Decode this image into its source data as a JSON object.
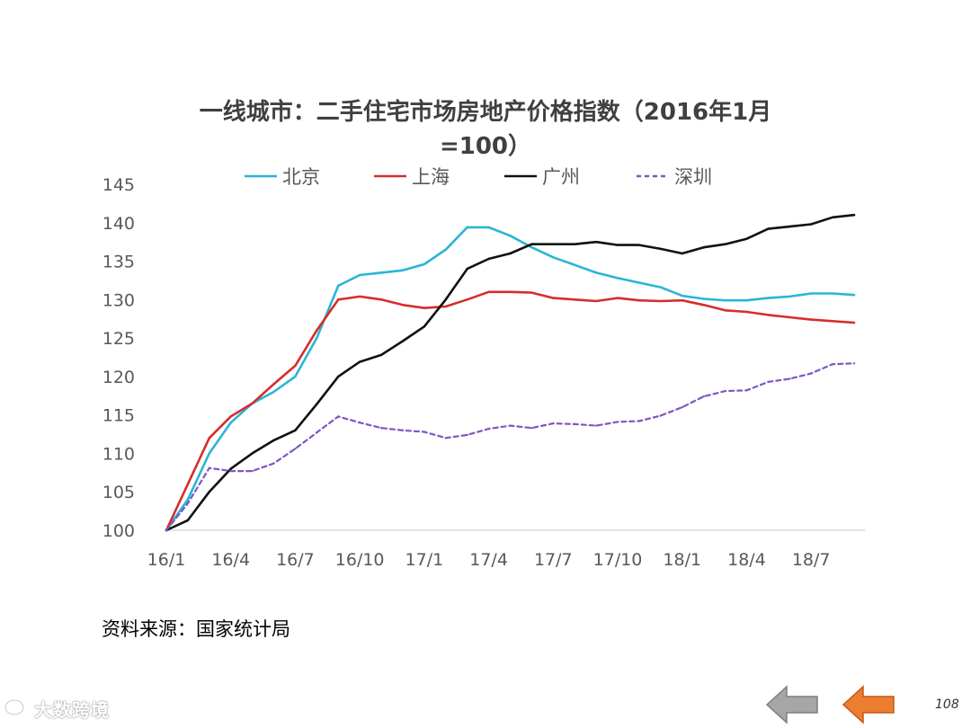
{
  "page": {
    "source_text": "资料来源：国家统计局",
    "page_number": "108",
    "watermark": "大数跨境"
  },
  "colors": {
    "beijing": "#29B5D6",
    "shanghai": "#D62D2D",
    "guangzhou": "#111111",
    "shenzhen": "#7E57C2",
    "prev_button": "#A6A6A6",
    "next_button": "#ED7D31"
  },
  "icons": {
    "prev": "left-arrow-icon",
    "next": "left-arrow-icon",
    "watermark": "chat-logo-icon"
  },
  "chart_data": {
    "type": "line",
    "title_lines": [
      "一线城市：二手住宅市场房地产价格指数（2016年1月",
      "=100）"
    ],
    "xlabel": "",
    "ylabel": "",
    "ylim": [
      100,
      145
    ],
    "yticks": [
      100,
      105,
      110,
      115,
      120,
      125,
      130,
      135,
      140,
      145
    ],
    "x": [
      "16/1",
      "16/2",
      "16/3",
      "16/4",
      "16/5",
      "16/6",
      "16/7",
      "16/8",
      "16/9",
      "16/10",
      "16/11",
      "16/12",
      "17/1",
      "17/2",
      "17/3",
      "17/4",
      "17/5",
      "17/6",
      "17/7",
      "17/8",
      "17/9",
      "17/10",
      "17/11",
      "17/12",
      "18/1",
      "18/2",
      "18/3",
      "18/4",
      "18/5",
      "18/6",
      "18/7",
      "18/8",
      "18/9"
    ],
    "xtick_labels": [
      "16/1",
      "16/4",
      "16/7",
      "16/10",
      "17/1",
      "17/4",
      "17/7",
      "17/10",
      "18/1",
      "18/4",
      "18/7"
    ],
    "grid": false,
    "legend_position": "top",
    "series": [
      {
        "name": "北京",
        "style": "solid",
        "values": [
          100,
          104,
          110,
          114,
          116.5,
          118,
          120,
          125,
          131.8,
          133.2,
          133.5,
          133.8,
          134.6,
          136.5,
          139.4,
          139.4,
          138.3,
          136.8,
          135.5,
          134.5,
          133.5,
          132.8,
          132.2,
          131.6,
          130.5,
          130.1,
          129.9,
          129.9,
          130.2,
          130.4,
          130.8,
          130.8,
          130.6
        ]
      },
      {
        "name": "上海",
        "style": "solid",
        "values": [
          100,
          106,
          112,
          114.8,
          116.5,
          119,
          121.4,
          126,
          130,
          130.4,
          130,
          129.3,
          128.9,
          129.1,
          130,
          131,
          131,
          130.9,
          130.2,
          130,
          129.8,
          130.2,
          129.9,
          129.8,
          129.9,
          129.3,
          128.6,
          128.4,
          128,
          127.7,
          127.4,
          127.2,
          127
        ]
      },
      {
        "name": "广州",
        "style": "solid",
        "values": [
          100,
          101.3,
          105,
          108,
          110,
          111.7,
          113,
          116.4,
          120,
          121.9,
          122.8,
          124.6,
          126.5,
          130,
          134,
          135.3,
          136,
          137.2,
          137.2,
          137.2,
          137.5,
          137.1,
          137.1,
          136.6,
          136,
          136.8,
          137.2,
          137.9,
          139.2,
          139.5,
          139.8,
          140.7,
          141
        ]
      },
      {
        "name": "深圳",
        "style": "dashed",
        "values": [
          100,
          103.5,
          108.1,
          107.7,
          107.7,
          108.7,
          110.6,
          112.7,
          114.8,
          114,
          113.3,
          113,
          112.8,
          112,
          112.4,
          113.2,
          113.6,
          113.3,
          113.9,
          113.8,
          113.6,
          114.1,
          114.2,
          114.9,
          116,
          117.4,
          118.1,
          118.2,
          119.3,
          119.7,
          120.4,
          121.6,
          121.7
        ]
      }
    ]
  }
}
